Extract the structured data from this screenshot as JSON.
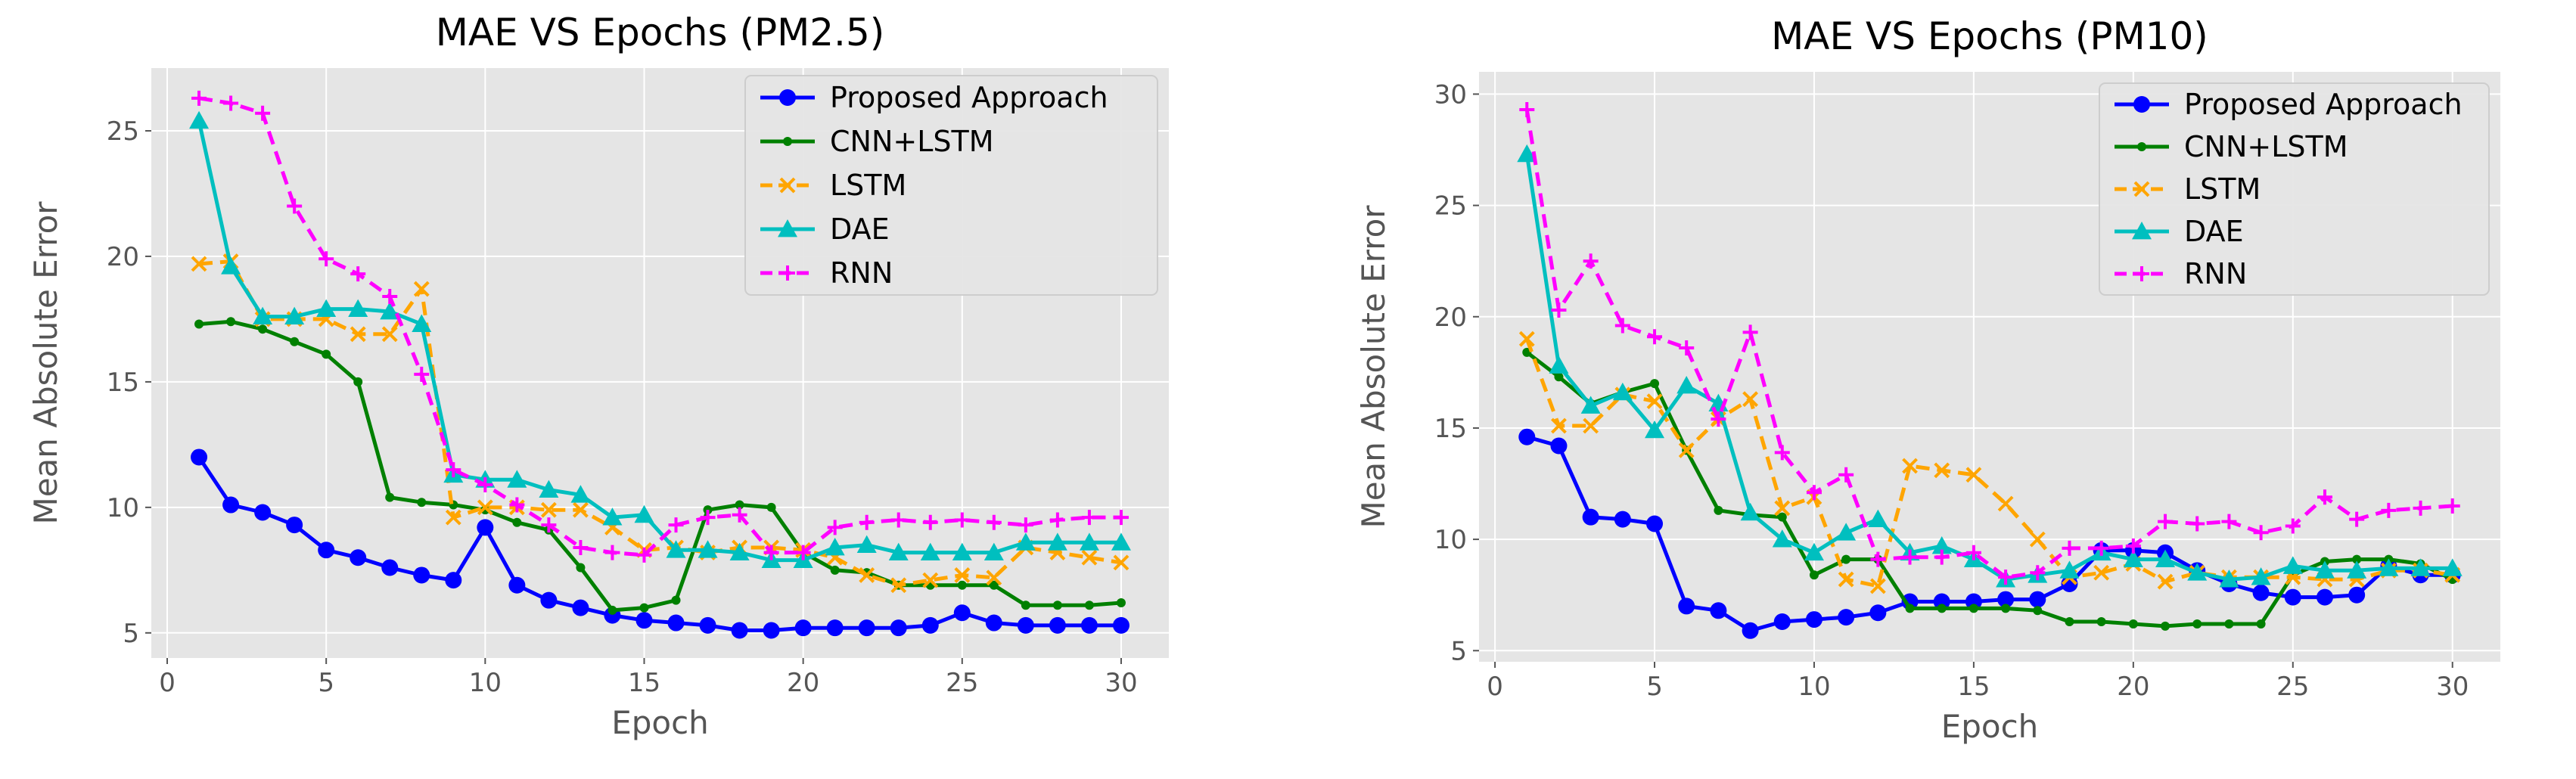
{
  "colors": {
    "plot_bg": "#e5e5e5",
    "grid": "#ffffff",
    "proposed": "#0000ff",
    "cnn_lstm": "#008000",
    "lstm": "#ffa500",
    "dae": "#00bfbf",
    "rnn": "#ff00ff"
  },
  "chart_data": [
    {
      "type": "line",
      "title": "MAE VS Epochs (PM2.5)",
      "xlabel": "Epoch",
      "ylabel": "Mean Absolute Error",
      "xlim": [
        -0.5,
        31.5
      ],
      "ylim": [
        4,
        27.5
      ],
      "xticks": [
        0,
        5,
        10,
        15,
        20,
        25,
        30
      ],
      "yticks": [
        5,
        10,
        15,
        20,
        25
      ],
      "grid": true,
      "legend": "top-right",
      "x": [
        1,
        2,
        3,
        4,
        5,
        6,
        7,
        8,
        9,
        10,
        11,
        12,
        13,
        14,
        15,
        16,
        17,
        18,
        19,
        20,
        21,
        22,
        23,
        24,
        25,
        26,
        27,
        28,
        29,
        30
      ],
      "series": [
        {
          "name": "Proposed Approach",
          "style": "solid",
          "marker": "circle",
          "color": "#0000ff",
          "values": [
            12.0,
            10.1,
            9.8,
            9.3,
            8.3,
            8.0,
            7.6,
            7.3,
            7.1,
            9.2,
            6.9,
            6.3,
            6.0,
            5.7,
            5.5,
            5.4,
            5.3,
            5.1,
            5.1,
            5.2,
            5.2,
            5.2,
            5.2,
            5.3,
            5.8,
            5.4,
            5.3,
            5.3,
            5.3,
            5.3
          ]
        },
        {
          "name": "CNN+LSTM",
          "style": "solid",
          "marker": "dot",
          "color": "#008000",
          "values": [
            17.3,
            17.4,
            17.1,
            16.6,
            16.1,
            15.0,
            10.4,
            10.2,
            10.1,
            9.9,
            9.4,
            9.1,
            7.6,
            5.9,
            6.0,
            6.3,
            9.9,
            10.1,
            10.0,
            8.2,
            7.5,
            7.4,
            6.9,
            6.9,
            6.9,
            6.9,
            6.1,
            6.1,
            6.1,
            6.2
          ]
        },
        {
          "name": "LSTM",
          "style": "dashed",
          "marker": "x",
          "color": "#ffa500",
          "values": [
            19.7,
            19.8,
            17.5,
            17.5,
            17.5,
            16.9,
            16.9,
            18.7,
            9.6,
            10.0,
            10.0,
            9.9,
            9.9,
            9.2,
            8.3,
            8.4,
            8.2,
            8.4,
            8.4,
            8.3,
            8.0,
            7.3,
            6.9,
            7.1,
            7.3,
            7.2,
            8.4,
            8.2,
            8.0,
            7.8
          ]
        },
        {
          "name": "DAE",
          "style": "solid",
          "marker": "triangle",
          "color": "#00bfbf",
          "values": [
            25.4,
            19.6,
            17.6,
            17.6,
            17.9,
            17.9,
            17.8,
            17.3,
            11.3,
            11.1,
            11.1,
            10.7,
            10.5,
            9.6,
            9.7,
            8.3,
            8.3,
            8.2,
            7.9,
            7.9,
            8.4,
            8.5,
            8.2,
            8.2,
            8.2,
            8.2,
            8.6,
            8.6,
            8.6,
            8.6
          ]
        },
        {
          "name": "RNN",
          "style": "dashed",
          "marker": "plus",
          "color": "#ff00ff",
          "values": [
            26.3,
            26.1,
            25.7,
            22.0,
            19.9,
            19.3,
            18.4,
            15.3,
            11.5,
            10.9,
            10.1,
            9.3,
            8.4,
            8.2,
            8.1,
            9.3,
            9.6,
            9.7,
            8.2,
            8.2,
            9.2,
            9.4,
            9.5,
            9.4,
            9.5,
            9.4,
            9.3,
            9.5,
            9.6,
            9.6
          ]
        }
      ]
    },
    {
      "type": "line",
      "title": "MAE VS Epochs (PM10)",
      "xlabel": "Epoch",
      "ylabel": "Mean Absolute Error",
      "xlim": [
        -0.5,
        31.5
      ],
      "ylim": [
        4.5,
        31.0
      ],
      "xticks": [
        0,
        5,
        10,
        15,
        20,
        25,
        30
      ],
      "yticks": [
        5,
        10,
        15,
        20,
        25,
        30
      ],
      "grid": true,
      "legend": "top-right",
      "x": [
        1,
        2,
        3,
        4,
        5,
        6,
        7,
        8,
        9,
        10,
        11,
        12,
        13,
        14,
        15,
        16,
        17,
        18,
        19,
        20,
        21,
        22,
        23,
        24,
        25,
        26,
        27,
        28,
        29,
        30
      ],
      "series": [
        {
          "name": "Proposed Approach",
          "style": "solid",
          "marker": "circle",
          "color": "#0000ff",
          "values": [
            14.6,
            14.2,
            11.0,
            10.9,
            10.7,
            7.0,
            6.8,
            5.9,
            6.3,
            6.4,
            6.5,
            6.7,
            7.2,
            7.2,
            7.2,
            7.3,
            7.3,
            8.0,
            9.5,
            9.5,
            9.4,
            8.6,
            8.0,
            7.6,
            7.4,
            7.4,
            7.5,
            8.8,
            8.4,
            8.4
          ]
        },
        {
          "name": "CNN+LSTM",
          "style": "solid",
          "marker": "dot",
          "color": "#008000",
          "values": [
            18.4,
            17.3,
            16.1,
            16.6,
            17.0,
            14.0,
            11.3,
            11.1,
            11.0,
            8.4,
            9.1,
            9.1,
            6.9,
            6.9,
            6.9,
            6.9,
            6.8,
            6.3,
            6.3,
            6.2,
            6.1,
            6.2,
            6.2,
            6.2,
            8.4,
            9.0,
            9.1,
            9.1,
            8.9,
            8.2
          ]
        },
        {
          "name": "LSTM",
          "style": "dashed",
          "marker": "x",
          "color": "#ffa500",
          "values": [
            19.0,
            15.1,
            15.1,
            16.5,
            16.2,
            14.0,
            15.4,
            16.3,
            11.4,
            11.9,
            8.2,
            7.9,
            13.3,
            13.1,
            12.9,
            11.6,
            10.0,
            8.3,
            8.5,
            8.9,
            8.1,
            8.5,
            8.3,
            8.3,
            8.3,
            8.2,
            8.2,
            8.6,
            8.6,
            8.4
          ]
        },
        {
          "name": "DAE",
          "style": "solid",
          "marker": "triangle",
          "color": "#00bfbf",
          "values": [
            27.3,
            17.8,
            16.0,
            16.6,
            14.9,
            16.9,
            16.1,
            11.2,
            10.0,
            9.4,
            10.3,
            10.9,
            9.4,
            9.7,
            9.1,
            8.2,
            8.4,
            8.6,
            9.4,
            9.1,
            9.1,
            8.5,
            8.2,
            8.3,
            8.8,
            8.6,
            8.6,
            8.7,
            8.7,
            8.7
          ]
        },
        {
          "name": "RNN",
          "style": "dashed",
          "marker": "plus",
          "color": "#ff00ff",
          "values": [
            29.3,
            20.3,
            22.5,
            19.6,
            19.1,
            18.6,
            15.4,
            19.3,
            13.9,
            12.1,
            12.9,
            9.1,
            9.2,
            9.2,
            9.4,
            8.3,
            8.5,
            9.6,
            9.6,
            9.7,
            10.8,
            10.7,
            10.8,
            10.3,
            10.6,
            11.9,
            10.9,
            11.3,
            11.4,
            11.5
          ]
        }
      ]
    }
  ]
}
